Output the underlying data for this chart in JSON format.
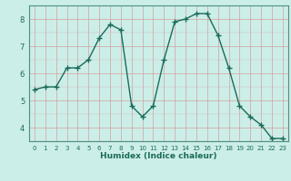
{
  "x": [
    0,
    1,
    2,
    3,
    4,
    5,
    6,
    7,
    8,
    9,
    10,
    11,
    12,
    13,
    14,
    15,
    16,
    17,
    18,
    19,
    20,
    21,
    22,
    23
  ],
  "y": [
    5.4,
    5.5,
    5.5,
    6.2,
    6.2,
    6.5,
    7.3,
    7.8,
    7.6,
    4.8,
    4.4,
    4.8,
    6.5,
    7.9,
    8.0,
    8.2,
    8.2,
    7.4,
    6.2,
    4.8,
    4.4,
    4.1,
    3.6,
    3.6
  ],
  "line_color": "#1a6b5a",
  "bg_color": "#cceee8",
  "grid_color_major": "#b8ddd6",
  "grid_color_minor": "#cce8e2",
  "xlabel": "Humidex (Indice chaleur)",
  "ylim": [
    3.5,
    8.5
  ],
  "xlim": [
    -0.5,
    23.5
  ],
  "yticks": [
    4,
    5,
    6,
    7,
    8
  ],
  "xticks": [
    0,
    1,
    2,
    3,
    4,
    5,
    6,
    7,
    8,
    9,
    10,
    11,
    12,
    13,
    14,
    15,
    16,
    17,
    18,
    19,
    20,
    21,
    22,
    23
  ],
  "axes_color": "#4a9080",
  "tick_color": "#1a6b5a",
  "label_color": "#1a6b5a",
  "marker": "+",
  "markersize": 4,
  "linewidth": 1.0
}
